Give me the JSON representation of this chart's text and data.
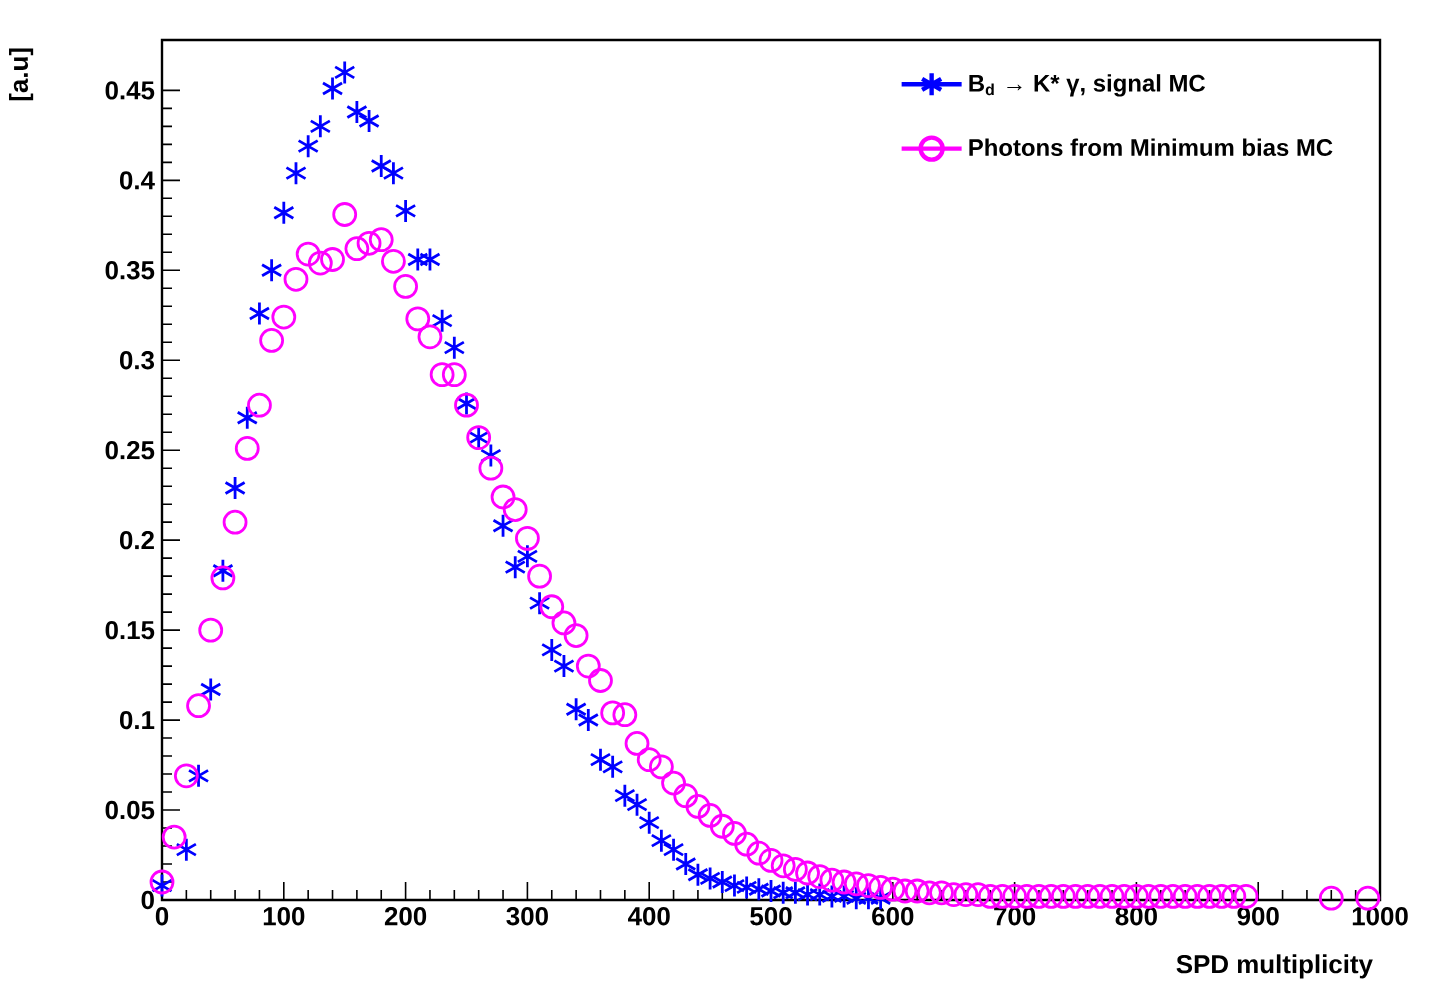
{
  "chart_data": {
    "type": "scatter",
    "xlabel": "SPD multiplicity",
    "ylabel": "[a.u]",
    "xlim": [
      0,
      1000
    ],
    "ylim": [
      0,
      0.478
    ],
    "xticks": [
      0,
      100,
      200,
      300,
      400,
      500,
      600,
      700,
      800,
      900,
      1000
    ],
    "yticks": [
      0,
      0.05,
      0.1,
      0.15,
      0.2,
      0.25,
      0.3,
      0.35,
      0.4,
      0.45
    ],
    "legend": "top right",
    "grid": false,
    "series": [
      {
        "name": "B$_{d}$ → K* γ, signal MC",
        "color": "#0000ff",
        "marker": "cross",
        "x": [
          0,
          20,
          30,
          40,
          50,
          60,
          70,
          80,
          90,
          100,
          110,
          120,
          130,
          140,
          150,
          160,
          170,
          180,
          190,
          200,
          210,
          220,
          230,
          240,
          250,
          260,
          270,
          280,
          290,
          300,
          310,
          320,
          330,
          340,
          350,
          360,
          370,
          380,
          390,
          400,
          410,
          420,
          430,
          440,
          450,
          460,
          470,
          480,
          490,
          500,
          510,
          520,
          530,
          540,
          550,
          560,
          570,
          580,
          590
        ],
        "values": [
          0.008,
          0.028,
          0.069,
          0.117,
          0.183,
          0.229,
          0.268,
          0.326,
          0.35,
          0.382,
          0.404,
          0.419,
          0.43,
          0.451,
          0.46,
          0.438,
          0.433,
          0.408,
          0.404,
          0.383,
          0.356,
          0.356,
          0.322,
          0.307,
          0.276,
          0.257,
          0.247,
          0.208,
          0.185,
          0.191,
          0.165,
          0.139,
          0.13,
          0.106,
          0.1,
          0.078,
          0.074,
          0.058,
          0.053,
          0.043,
          0.033,
          0.028,
          0.02,
          0.014,
          0.012,
          0.01,
          0.008,
          0.007,
          0.006,
          0.005,
          0.004,
          0.004,
          0.003,
          0.003,
          0.002,
          0.002,
          0.001,
          0.001,
          0.001
        ]
      },
      {
        "name": "Photons from Minimum bias MC",
        "color": "#ff00ff",
        "marker": "circle",
        "x": [
          0,
          10,
          20,
          30,
          40,
          50,
          60,
          70,
          80,
          90,
          100,
          110,
          120,
          130,
          140,
          150,
          160,
          170,
          180,
          190,
          200,
          210,
          220,
          230,
          240,
          250,
          260,
          270,
          280,
          290,
          300,
          310,
          320,
          330,
          340,
          350,
          360,
          370,
          380,
          390,
          400,
          410,
          420,
          430,
          440,
          450,
          460,
          470,
          480,
          490,
          500,
          510,
          520,
          530,
          540,
          550,
          560,
          570,
          580,
          590,
          600,
          610,
          620,
          630,
          640,
          650,
          660,
          670,
          680,
          690,
          700,
          710,
          720,
          730,
          740,
          750,
          760,
          770,
          780,
          790,
          800,
          810,
          820,
          830,
          840,
          850,
          860,
          870,
          880,
          890,
          960,
          990
        ],
        "values": [
          0.01,
          0.035,
          0.069,
          0.108,
          0.15,
          0.179,
          0.21,
          0.251,
          0.275,
          0.311,
          0.324,
          0.345,
          0.359,
          0.354,
          0.356,
          0.381,
          0.362,
          0.365,
          0.367,
          0.355,
          0.341,
          0.323,
          0.313,
          0.292,
          0.292,
          0.275,
          0.257,
          0.24,
          0.224,
          0.217,
          0.201,
          0.18,
          0.163,
          0.154,
          0.147,
          0.13,
          0.122,
          0.104,
          0.103,
          0.087,
          0.078,
          0.074,
          0.065,
          0.058,
          0.052,
          0.047,
          0.041,
          0.037,
          0.031,
          0.026,
          0.022,
          0.019,
          0.017,
          0.015,
          0.013,
          0.011,
          0.01,
          0.009,
          0.008,
          0.007,
          0.006,
          0.005,
          0.005,
          0.004,
          0.004,
          0.003,
          0.003,
          0.003,
          0.002,
          0.002,
          0.002,
          0.002,
          0.002,
          0.002,
          0.002,
          0.002,
          0.002,
          0.002,
          0.002,
          0.002,
          0.002,
          0.002,
          0.002,
          0.002,
          0.002,
          0.002,
          0.002,
          0.002,
          0.002,
          0.002,
          0.001,
          0.001
        ]
      }
    ]
  }
}
